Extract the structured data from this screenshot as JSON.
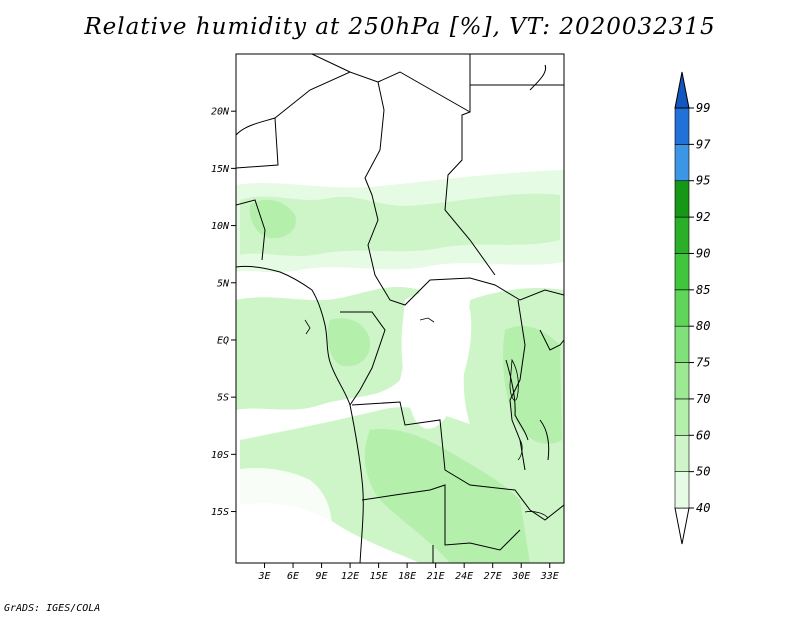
{
  "title": "Relative humidity at 250hPa [%], VT: 2020032315",
  "credit": "GrADS: IGES/COLA",
  "map": {
    "lon_range": [
      0,
      34.5
    ],
    "lat_range": [
      -19.5,
      25
    ],
    "lon_ticks": [
      3,
      6,
      9,
      12,
      15,
      18,
      21,
      24,
      27,
      30,
      33
    ],
    "lon_tick_labels": [
      "3E",
      "6E",
      "9E",
      "12E",
      "15E",
      "18E",
      "21E",
      "24E",
      "27E",
      "30E",
      "33E"
    ],
    "lat_ticks": [
      20,
      15,
      10,
      5,
      0,
      -5,
      -10,
      -15
    ],
    "lat_tick_labels": [
      "20N",
      "15N",
      "10N",
      "5N",
      "EQ",
      "5S",
      "10S",
      "15S"
    ]
  },
  "colorbar": {
    "levels": [
      "40",
      "50",
      "60",
      "70",
      "75",
      "80",
      "85",
      "90",
      "92",
      "95",
      "97",
      "99"
    ],
    "colors": [
      "#ffffff",
      "#e6fbe4",
      "#cdf5c8",
      "#b4f0ac",
      "#9ce893",
      "#80e07a",
      "#5fd65a",
      "#3fc63c",
      "#2ab028",
      "#169816",
      "#3c96e6",
      "#2072d8",
      "#1356c0"
    ]
  }
}
